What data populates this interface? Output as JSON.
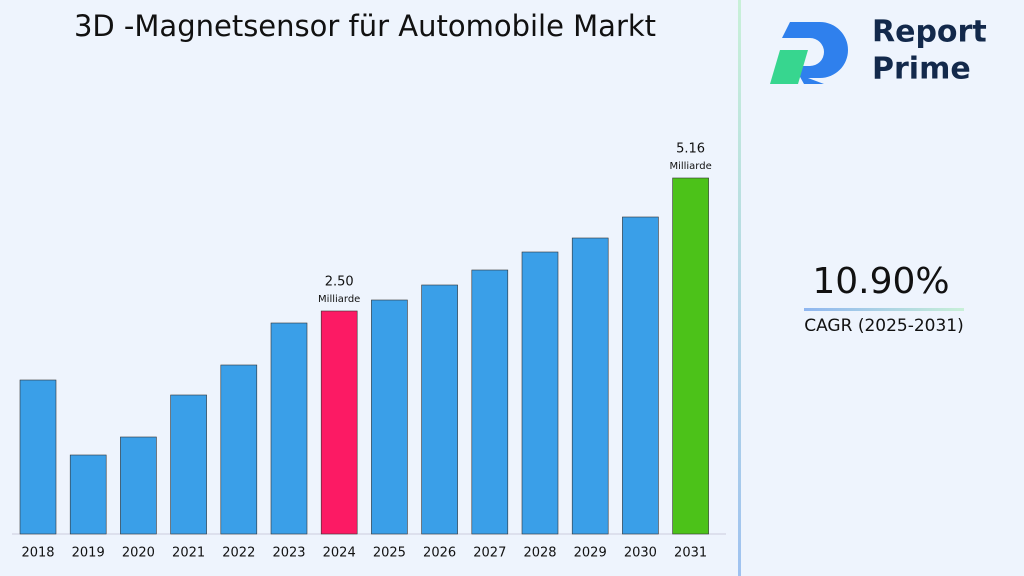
{
  "chart_data": {
    "type": "bar",
    "title": "3D -Magnetsensor für Automobile Markt",
    "categories": [
      "2018",
      "2019",
      "2020",
      "2021",
      "2022",
      "2023",
      "2024",
      "2025",
      "2026",
      "2027",
      "2028",
      "2029",
      "2030",
      "2031"
    ],
    "values": [
      1.12,
      -0.38,
      -0.02,
      0.82,
      1.42,
      2.26,
      2.5,
      2.72,
      3.02,
      3.32,
      3.68,
      3.96,
      4.38,
      5.16
    ],
    "value_labels": [
      null,
      null,
      null,
      null,
      null,
      null,
      "2.50",
      null,
      null,
      null,
      null,
      null,
      null,
      "5.16"
    ],
    "value_label_unit": "Milliarde",
    "colors": [
      "#3a9fe8",
      "#3a9fe8",
      "#3a9fe8",
      "#3a9fe8",
      "#3a9fe8",
      "#3a9fe8",
      "#fc1a64",
      "#3a9fe8",
      "#3a9fe8",
      "#3a9fe8",
      "#3a9fe8",
      "#3a9fe8",
      "#3a9fe8",
      "#4cc219"
    ],
    "ylim": [
      -1.96,
      5.92
    ]
  },
  "cagr": {
    "value": "10.90%",
    "label": "CAGR (2025-2031)"
  },
  "logo": {
    "line1": "Report",
    "line2": "Prime"
  }
}
